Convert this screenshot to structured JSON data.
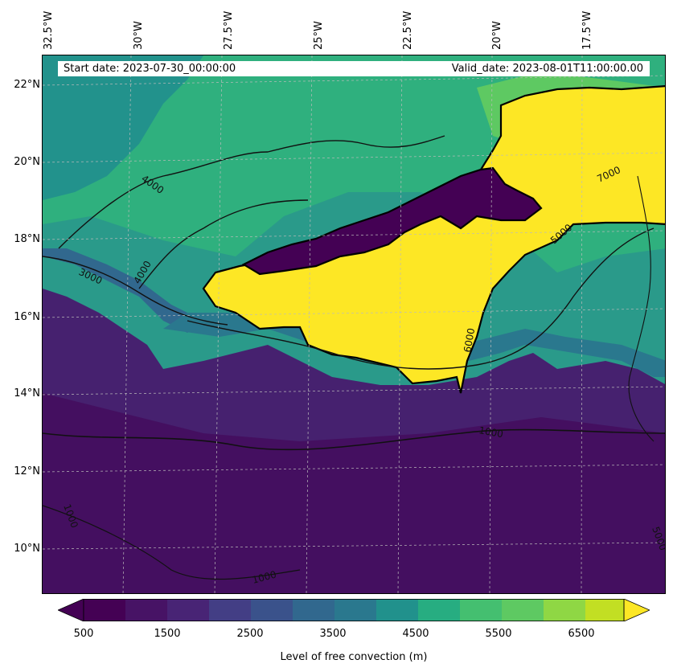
{
  "map": {
    "header": {
      "start_date": "Start date: 2023-07-30_00:00:00",
      "valid_date": "Valid_date: 2023-08-01T11:00:00.00"
    },
    "lon_labels": [
      "32.5°W",
      "30°W",
      "27.5°W",
      "25°W",
      "22.5°W",
      "20°W",
      "17.5°W"
    ],
    "lat_labels": [
      "22°N",
      "20°N",
      "18°N",
      "16°N",
      "14°N",
      "12°N",
      "10°N"
    ],
    "contour_labels": [
      "4000",
      "3000",
      "4000",
      "5000",
      "6000",
      "1000",
      "1000",
      "1000",
      "7000",
      "5000"
    ],
    "colors": {
      "c500": "#440154",
      "c1000": "#471365",
      "c1500": "#482475",
      "c2000": "#433e85",
      "c2500": "#3a528b",
      "c3000": "#31688e",
      "c3500": "#2a788e",
      "c4000": "#21918c",
      "c4500": "#27ad81",
      "c5000": "#44bf70",
      "c5500": "#5ec962",
      "c6000": "#8fd744",
      "c6500": "#c2df23",
      "c7000": "#fde725"
    }
  },
  "colorbar": {
    "ticks": [
      "500",
      "1500",
      "2500",
      "3500",
      "4500",
      "5500",
      "6500"
    ],
    "label": "Level of free convection (m)"
  }
}
